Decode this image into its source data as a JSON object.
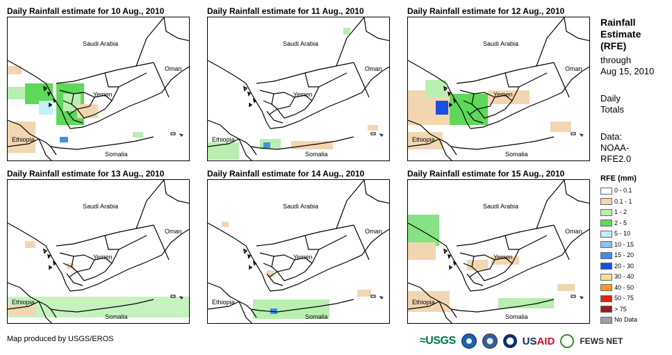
{
  "panels": [
    {
      "title": "Daily Rainfall estimate for 10 Aug., 2010",
      "rain": "p1"
    },
    {
      "title": "Daily Rainfall estimate for 11 Aug., 2010",
      "rain": "p2"
    },
    {
      "title": "Daily Rainfall estimate for 12 Aug., 2010",
      "rain": "p3"
    },
    {
      "title": "Daily Rainfall estimate for 13 Aug., 2010",
      "rain": "p4"
    },
    {
      "title": "Daily Rainfall estimate for 14 Aug., 2010",
      "rain": "p5"
    },
    {
      "title": "Daily Rainfall estimate for 15 Aug., 2010",
      "rain": "p6"
    }
  ],
  "place_labels": {
    "saudi": "Saudi Arabia",
    "oman": "Oman",
    "yemen": "Yemen",
    "ethiopia": "Ethiopia",
    "somalia": "Somalia"
  },
  "side": {
    "title_line1": "Rainfall",
    "title_line2": "Estimate",
    "title_line3": "(RFE)",
    "through": "through",
    "date": "Aug 15, 2010",
    "daily": "Daily",
    "totals": "Totals",
    "data_label": "Data:",
    "noaa": "NOAA-",
    "rfe": "RFE2.0"
  },
  "legend": {
    "title": "RFE (mm)",
    "items": [
      {
        "label": "0 - 0.1",
        "color": "#ffffff"
      },
      {
        "label": "0.1 - 1",
        "color": "#f2d6b2"
      },
      {
        "label": "1 - 2",
        "color": "#b8efb0"
      },
      {
        "label": "2 - 5",
        "color": "#5fd85a"
      },
      {
        "label": "5 - 10",
        "color": "#c2f0f8"
      },
      {
        "label": "10 - 15",
        "color": "#8cc3f0"
      },
      {
        "label": "15 - 20",
        "color": "#3f8ee8"
      },
      {
        "label": "20 - 30",
        "color": "#1a4fe0"
      },
      {
        "label": "30 - 40",
        "color": "#f5e08a"
      },
      {
        "label": "40 - 50",
        "color": "#f59c1a"
      },
      {
        "label": "50 - 75",
        "color": "#e5230f"
      },
      {
        "label": "> 75",
        "color": "#9a1a1a"
      },
      {
        "label": "No Data",
        "color": "#a0a0a0"
      }
    ]
  },
  "footer": {
    "credit": "Map produced by USGS/EROS",
    "usgs": "≈USGS",
    "usaid_us": "US",
    "usaid_aid": "AID",
    "fews": "FEWS NET"
  }
}
